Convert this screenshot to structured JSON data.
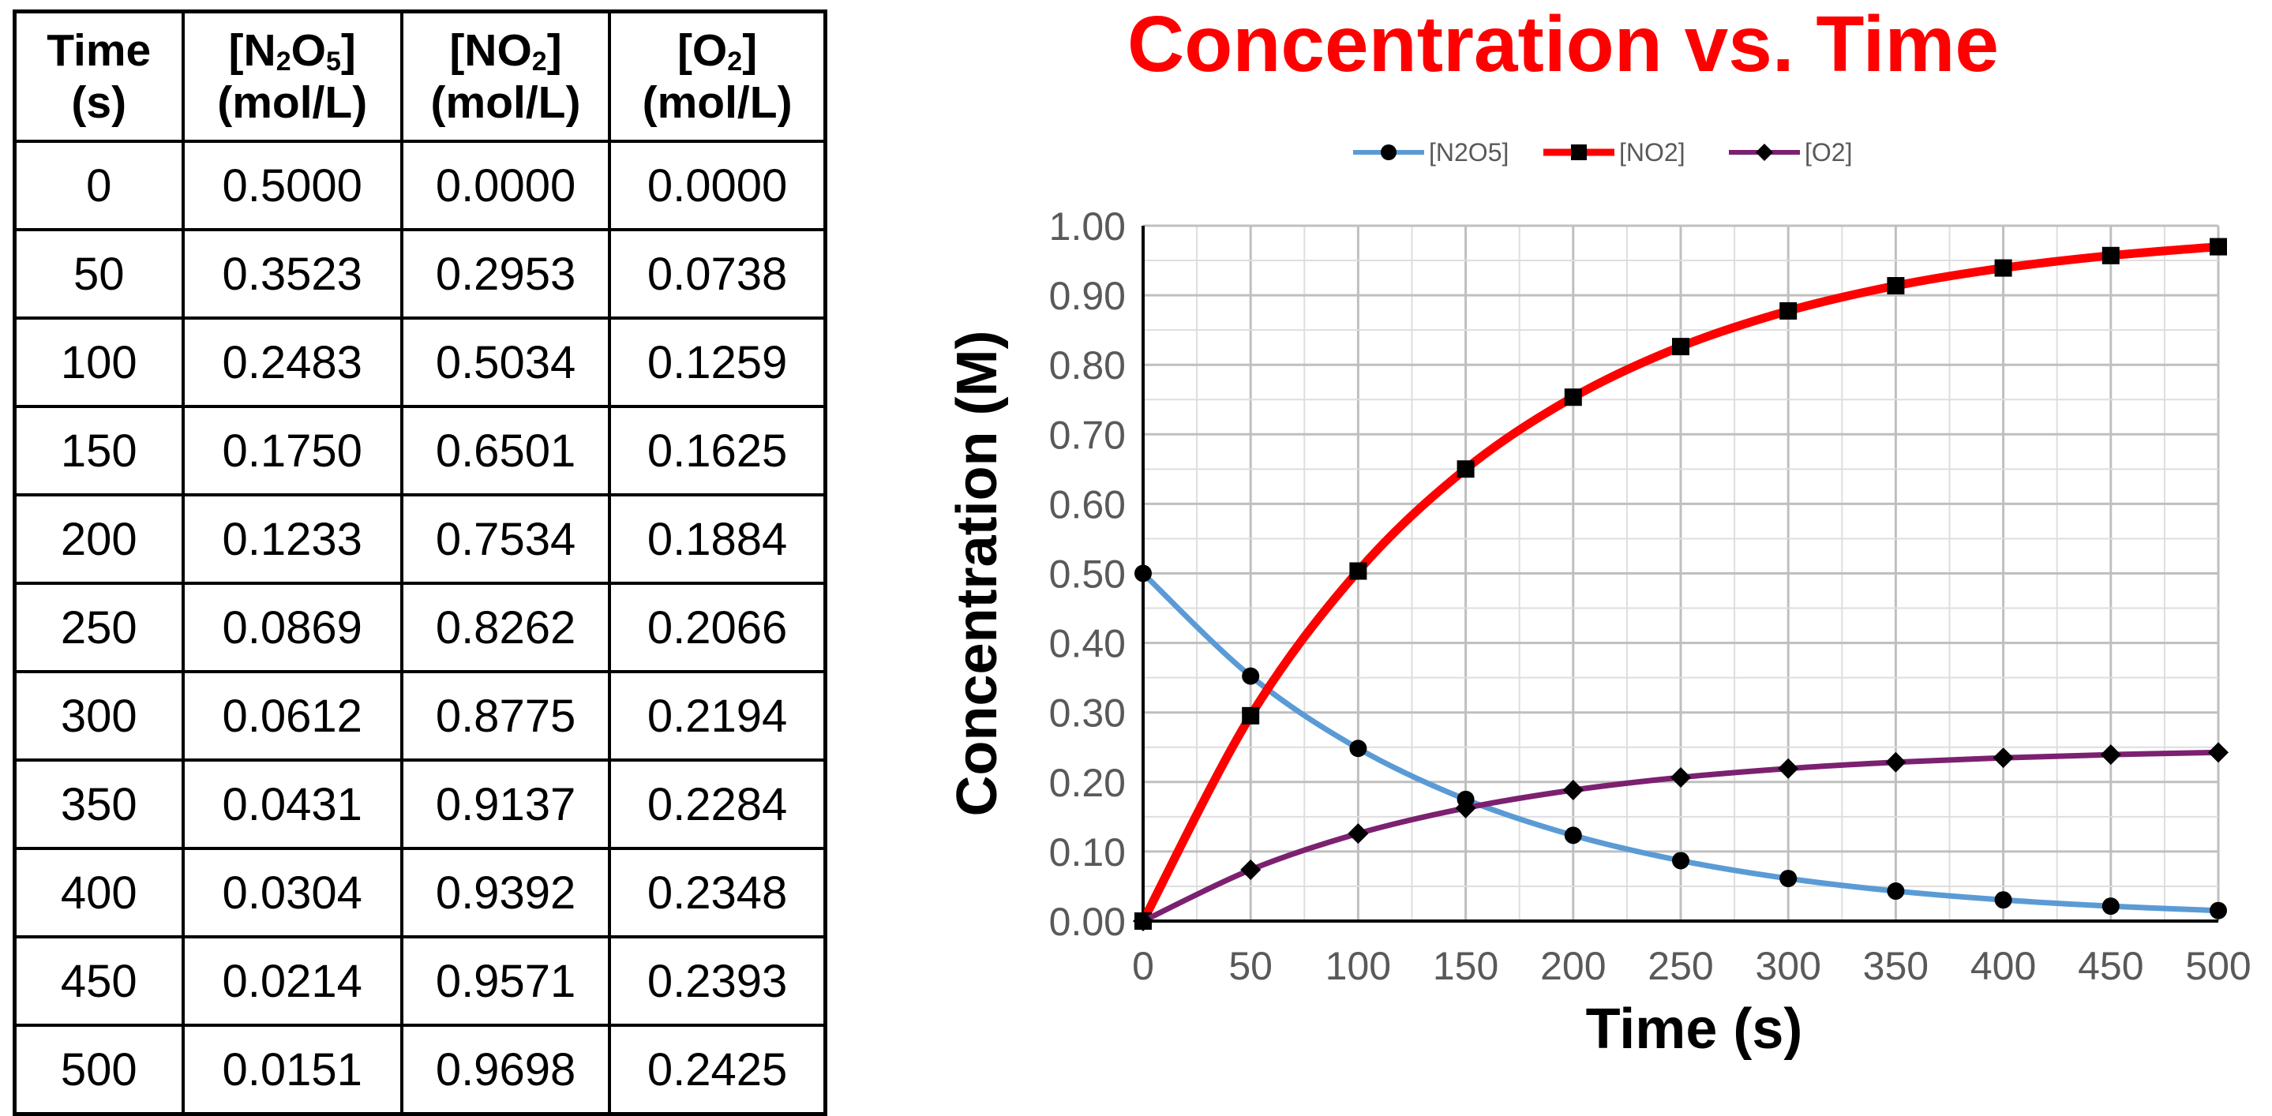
{
  "table": {
    "headers": [
      {
        "main": "Time",
        "unit": "(s)"
      },
      {
        "pre": "[N",
        "sub1": "2",
        "mid": "O",
        "sub2": "5",
        "post": "]",
        "unit": "(mol/L)"
      },
      {
        "pre": "[NO",
        "sub1": "2",
        "post": "]",
        "unit": "(mol/L)"
      },
      {
        "pre": "[O",
        "sub1": "2",
        "post": "]",
        "unit": "(mol/L)"
      }
    ],
    "rows": [
      [
        "0",
        "0.5000",
        "0.0000",
        "0.0000"
      ],
      [
        "50",
        "0.3523",
        "0.2953",
        "0.0738"
      ],
      [
        "100",
        "0.2483",
        "0.5034",
        "0.1259"
      ],
      [
        "150",
        "0.1750",
        "0.6501",
        "0.1625"
      ],
      [
        "200",
        "0.1233",
        "0.7534",
        "0.1884"
      ],
      [
        "250",
        "0.0869",
        "0.8262",
        "0.2066"
      ],
      [
        "300",
        "0.0612",
        "0.8775",
        "0.2194"
      ],
      [
        "350",
        "0.0431",
        "0.9137",
        "0.2284"
      ],
      [
        "400",
        "0.0304",
        "0.9392",
        "0.2348"
      ],
      [
        "450",
        "0.0214",
        "0.9571",
        "0.2393"
      ],
      [
        "500",
        "0.0151",
        "0.9698",
        "0.2425"
      ]
    ]
  },
  "chart_data": {
    "type": "line",
    "title": "Concentration vs. Time",
    "title_color": "#ff0000",
    "xlabel": "Time (s)",
    "ylabel": "Concentration (M)",
    "x": [
      0,
      50,
      100,
      150,
      200,
      250,
      300,
      350,
      400,
      450,
      500
    ],
    "xlim": [
      0,
      500
    ],
    "ylim": [
      0,
      1
    ],
    "x_ticks": [
      "0",
      "50",
      "100",
      "150",
      "200",
      "250",
      "300",
      "350",
      "400",
      "450",
      "500"
    ],
    "y_ticks": [
      "0.00",
      "0.10",
      "0.20",
      "0.30",
      "0.40",
      "0.50",
      "0.60",
      "0.70",
      "0.80",
      "0.90",
      "1.00"
    ],
    "grid": true,
    "legend_position": "top",
    "series": [
      {
        "name": "[N2O5]",
        "color": "#5b9bd5",
        "marker": "circle",
        "values": [
          0.5,
          0.3523,
          0.2483,
          0.175,
          0.1233,
          0.0869,
          0.0612,
          0.0431,
          0.0304,
          0.0214,
          0.0151
        ]
      },
      {
        "name": "[NO2]",
        "color": "#ff0000",
        "marker": "square",
        "values": [
          0.0,
          0.2953,
          0.5034,
          0.6501,
          0.7534,
          0.8262,
          0.8775,
          0.9137,
          0.9392,
          0.9571,
          0.9698
        ]
      },
      {
        "name": "[O2]",
        "color": "#7b2170",
        "marker": "diamond",
        "values": [
          0.0,
          0.0738,
          0.1259,
          0.1625,
          0.1884,
          0.2066,
          0.2194,
          0.2284,
          0.2348,
          0.2393,
          0.2425
        ]
      }
    ]
  }
}
